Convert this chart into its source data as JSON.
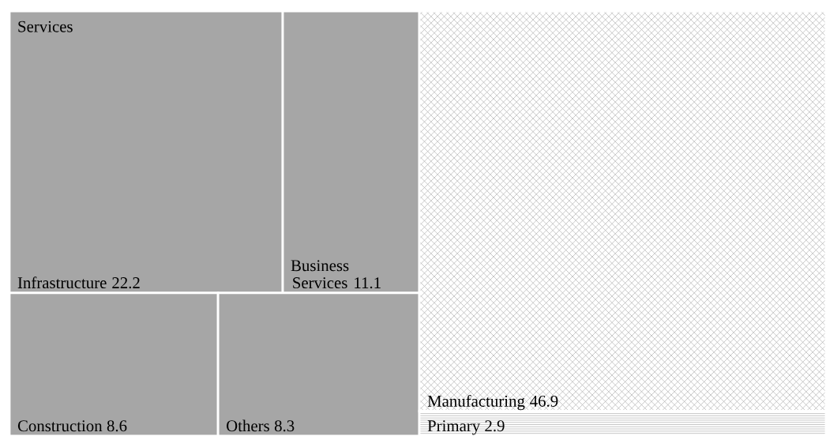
{
  "chart_data": {
    "type": "other",
    "categories": [
      "Infrastructure",
      "Business Services",
      "Construction",
      "Others",
      "Manufacturing",
      "Primary"
    ],
    "annotations": [
      "Services"
    ],
    "data_labels": true,
    "series": [
      {
        "color": "#a6a6a6",
        "values": [
          22.2,
          11.1,
          8.6,
          8.3,
          null,
          null
        ]
      },
      {
        "color": "#ffffff",
        "values": [
          null,
          null,
          null,
          null,
          46.9,
          null
        ]
      },
      {
        "color": "#ffffff",
        "values": [
          null,
          null,
          null,
          null,
          null,
          2.9
        ]
      }
    ]
  }
}
